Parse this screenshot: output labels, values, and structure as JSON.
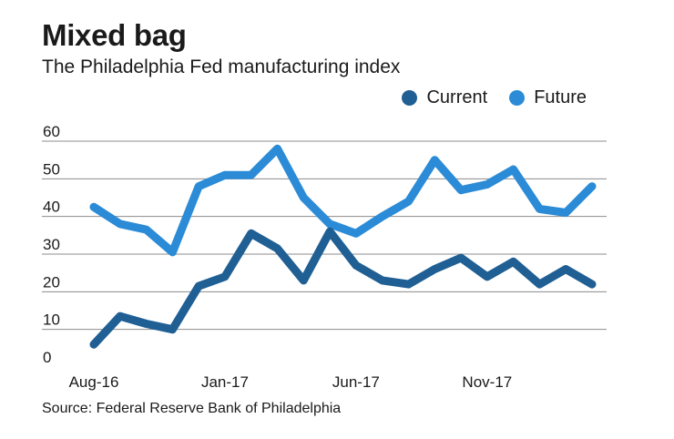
{
  "chart_data": {
    "type": "line",
    "title": "Mixed bag",
    "subtitle": "The Philadelphia Fed manufacturing index",
    "source": "Source: Federal Reserve Bank of Philadelphia",
    "xlabel": "",
    "ylabel": "",
    "ylim": [
      0,
      60
    ],
    "yticks": [
      0,
      10,
      20,
      30,
      40,
      50,
      60
    ],
    "ytick_labels": [
      "0",
      "10",
      "20",
      "30",
      "40",
      "50",
      "60"
    ],
    "x_tick_labels": [
      {
        "index": 0,
        "label": "Aug-16"
      },
      {
        "index": 5,
        "label": "Jan-17"
      },
      {
        "index": 10,
        "label": "Jun-17"
      },
      {
        "index": 15,
        "label": "Nov-17"
      }
    ],
    "grid": true,
    "legend_position": "top-right",
    "series": [
      {
        "name": "Current",
        "color": "#1f5f94",
        "values": [
          6,
          13.5,
          11.5,
          10,
          21.5,
          24,
          35.5,
          31.5,
          23,
          36,
          27,
          23,
          22,
          26,
          29,
          24,
          28,
          22,
          26,
          22
        ]
      },
      {
        "name": "Future",
        "color": "#2b8bd6",
        "values": [
          42.5,
          38,
          36.5,
          30.5,
          48,
          51,
          51,
          58,
          45,
          38,
          35.5,
          40,
          44,
          55,
          47,
          48.5,
          52.5,
          42,
          41,
          48
        ]
      }
    ]
  }
}
